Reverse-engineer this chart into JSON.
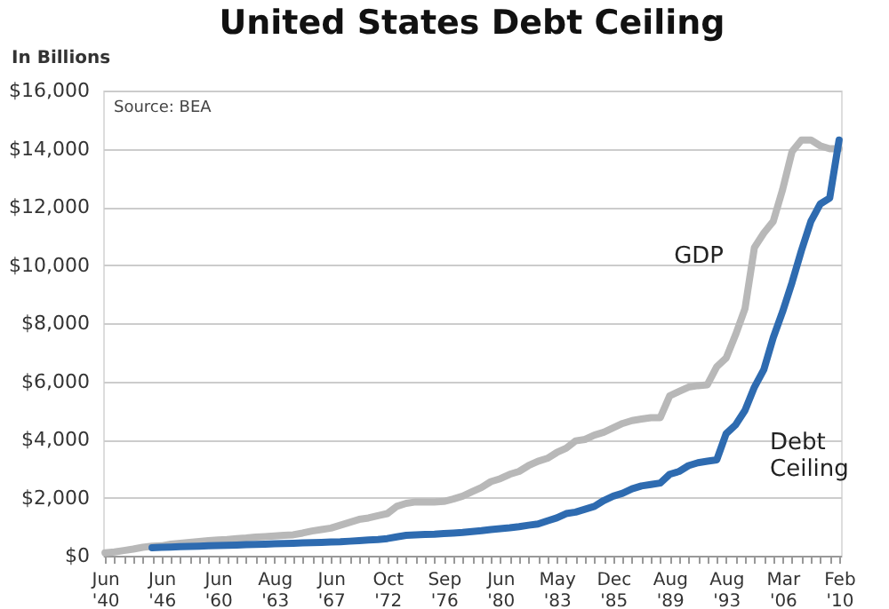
{
  "chart_data": {
    "type": "line",
    "title": "United States Debt Ceiling",
    "ylabel": "In Billions",
    "annotations": [
      "Source: BEA"
    ],
    "categories": [
      "Jun '40",
      null,
      null,
      null,
      null,
      null,
      "Jun '46",
      null,
      null,
      null,
      null,
      null,
      "Jun '60",
      null,
      null,
      null,
      null,
      null,
      "Aug '63",
      null,
      null,
      null,
      null,
      null,
      "Jun '67",
      null,
      null,
      null,
      null,
      null,
      "Oct '72",
      null,
      null,
      null,
      null,
      null,
      "Sep '76",
      null,
      null,
      null,
      null,
      null,
      "Jun '80",
      null,
      null,
      null,
      null,
      null,
      "May '83",
      null,
      null,
      null,
      null,
      null,
      "Dec '85",
      null,
      null,
      null,
      null,
      null,
      "Aug '89",
      null,
      null,
      null,
      null,
      null,
      "Aug '93",
      null,
      null,
      null,
      null,
      null,
      "Mar '06",
      null,
      null,
      null,
      null,
      null,
      "Feb '10"
    ],
    "series": [
      {
        "name": "GDP",
        "color": "#b8b8b8",
        "values": [
          100,
          130,
          180,
          230,
          290,
          330,
          340,
          400,
          430,
          460,
          490,
          520,
          540,
          560,
          590,
          610,
          640,
          660,
          680,
          700,
          720,
          780,
          850,
          900,
          950,
          1050,
          1150,
          1250,
          1300,
          1380,
          1450,
          1700,
          1800,
          1850,
          1850,
          1850,
          1870,
          1950,
          2050,
          2200,
          2350,
          2550,
          2650,
          2800,
          2900,
          3100,
          3250,
          3350,
          3550,
          3700,
          3950,
          4000,
          4150,
          4250,
          4400,
          4550,
          4650,
          4700,
          4750,
          4750,
          5500,
          5650,
          5800,
          5850,
          5880,
          6500,
          6800,
          7600,
          8500,
          10600,
          11100,
          11500,
          12600,
          13900,
          14300,
          14300,
          14100,
          14000,
          14000
        ]
      },
      {
        "name": "Debt Ceiling",
        "color": "#2e6bb0",
        "values": [
          null,
          null,
          null,
          null,
          null,
          275,
          290,
          300,
          310,
          320,
          330,
          340,
          350,
          360,
          370,
          380,
          390,
          400,
          410,
          420,
          430,
          440,
          450,
          460,
          470,
          480,
          500,
          520,
          540,
          560,
          590,
          650,
          700,
          720,
          730,
          740,
          760,
          780,
          800,
          830,
          860,
          900,
          930,
          960,
          1000,
          1050,
          1090,
          1200,
          1300,
          1450,
          1500,
          1600,
          1700,
          1900,
          2050,
          2150,
          2300,
          2400,
          2450,
          2500,
          2800,
          2900,
          3100,
          3200,
          3250,
          3300,
          4200,
          4500,
          5000,
          5800,
          6400,
          7500,
          8400,
          9400,
          10500,
          11500,
          12100,
          12300,
          14300
        ]
      }
    ],
    "ylim": [
      0,
      16000
    ],
    "yticks": [
      {
        "value": 0,
        "label": "$0"
      },
      {
        "value": 2000,
        "label": "$2,000"
      },
      {
        "value": 4000,
        "label": "$4,000"
      },
      {
        "value": 6000,
        "label": "$6,000"
      },
      {
        "value": 8000,
        "label": "$8,000"
      },
      {
        "value": 10000,
        "label": "$10,000"
      },
      {
        "value": 12000,
        "label": "$12,000"
      },
      {
        "value": 14000,
        "label": "$14,000"
      },
      {
        "value": 16000,
        "label": "$16,000"
      }
    ],
    "grid": "y",
    "legend": false,
    "marker": "none",
    "line_style": "solid"
  }
}
